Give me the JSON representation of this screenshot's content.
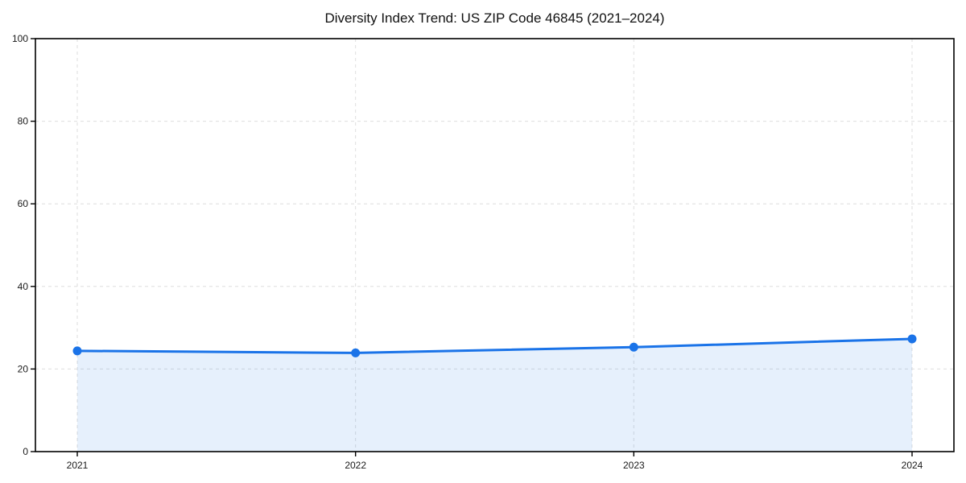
{
  "chart_data": {
    "type": "area",
    "title": "Diversity Index Trend: US ZIP Code 46845 (2021–2024)",
    "categories": [
      "2021",
      "2022",
      "2023",
      "2024"
    ],
    "series": [
      {
        "name": "Diversity Index",
        "values": [
          24.4,
          23.9,
          25.3,
          27.3
        ]
      }
    ],
    "xlabel": "",
    "ylabel": "",
    "ylim": [
      0,
      100
    ],
    "yticks": [
      0,
      20,
      40,
      60,
      80,
      100
    ],
    "grid": true,
    "grid_style": "dashed",
    "legend": "none",
    "colors": {
      "line": "#1a73e8",
      "marker": "#1a73e8",
      "fill": "#1a73e8",
      "fill_opacity": 0.11,
      "grid": "#dedede",
      "axis": "#000000",
      "tick_label": "#1a1a1a",
      "title": "#111111",
      "background": "#ffffff"
    }
  }
}
